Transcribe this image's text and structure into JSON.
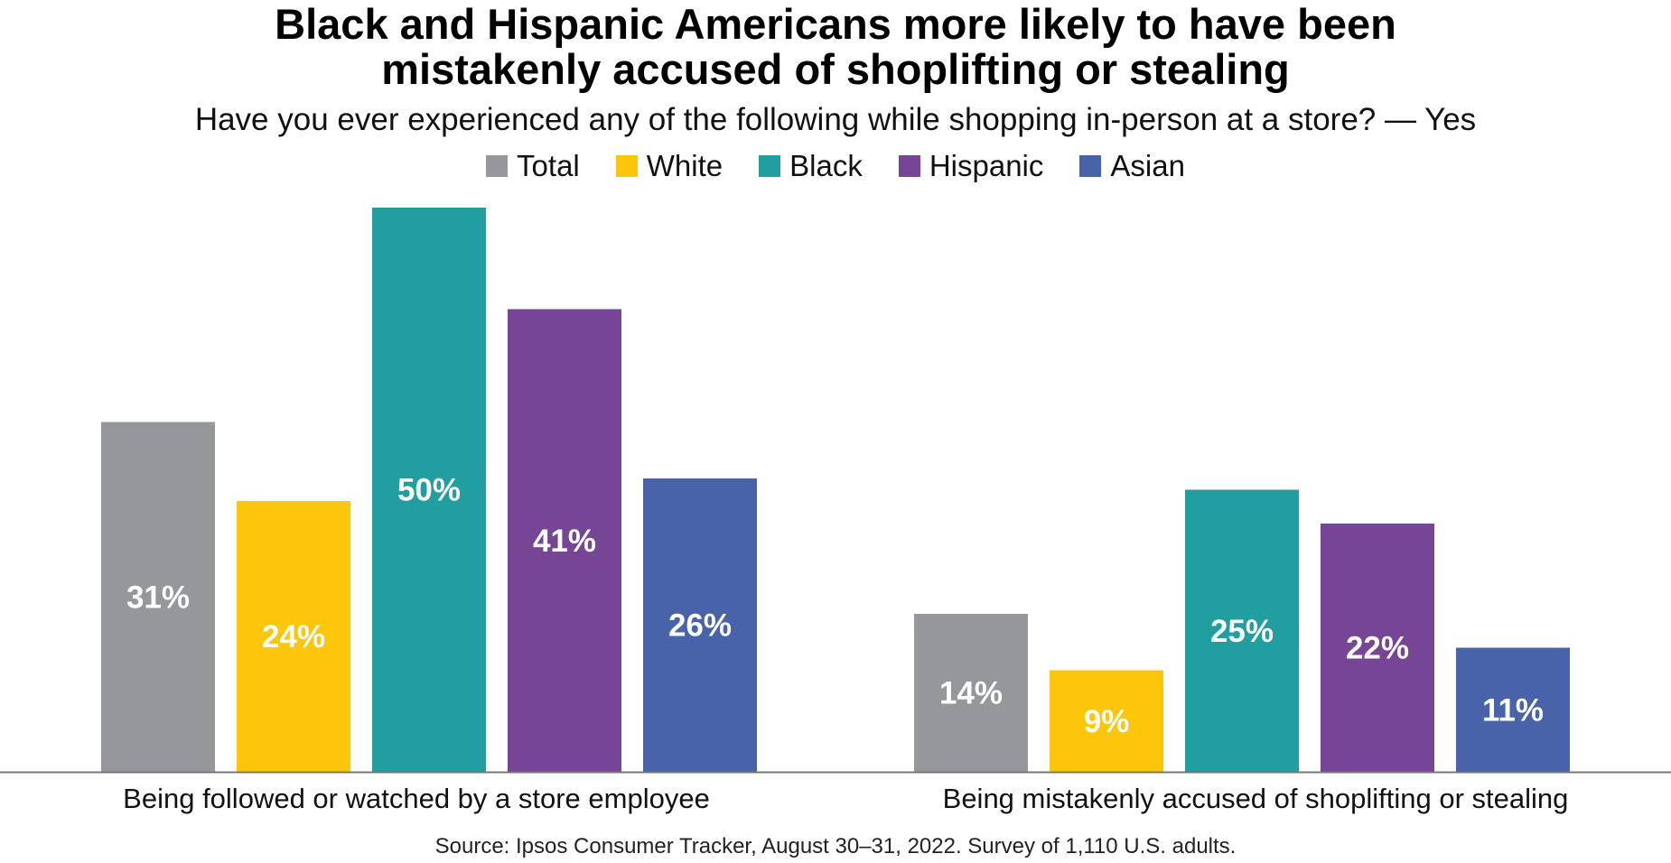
{
  "chart_data": {
    "type": "bar",
    "title_lines": [
      "Black and Hispanic Americans more likely to have been",
      "mistakenly accused of shoplifting or stealing"
    ],
    "subtitle": "Have you ever experienced any of the following while shopping in-person at a store? — Yes",
    "categories": [
      "Being followed or watched by a store employee",
      "Being mistakenly accused of shoplifting or stealing"
    ],
    "series": [
      {
        "name": "Total",
        "color": "#96979a",
        "values": [
          31,
          14
        ],
        "labels": [
          "31%",
          "14%"
        ]
      },
      {
        "name": "White",
        "color": "#fcc70a",
        "values": [
          24,
          9
        ],
        "labels": [
          "24%",
          "9%"
        ]
      },
      {
        "name": "Black",
        "color": "#219e9f",
        "values": [
          50,
          25
        ],
        "labels": [
          "50%",
          "25%"
        ]
      },
      {
        "name": "Hispanic",
        "color": "#774596",
        "values": [
          41,
          22
        ],
        "labels": [
          "41%",
          "22%"
        ]
      },
      {
        "name": "Asian",
        "color": "#4963ab",
        "values": [
          26,
          11
        ],
        "labels": [
          "26%",
          "11%"
        ]
      }
    ],
    "ylim": [
      0,
      50
    ],
    "grid": false,
    "legend_position": "top-center",
    "source": "Source: Ipsos Consumer Tracker, August 30–31, 2022. Survey of 1,110 U.S. adults."
  }
}
